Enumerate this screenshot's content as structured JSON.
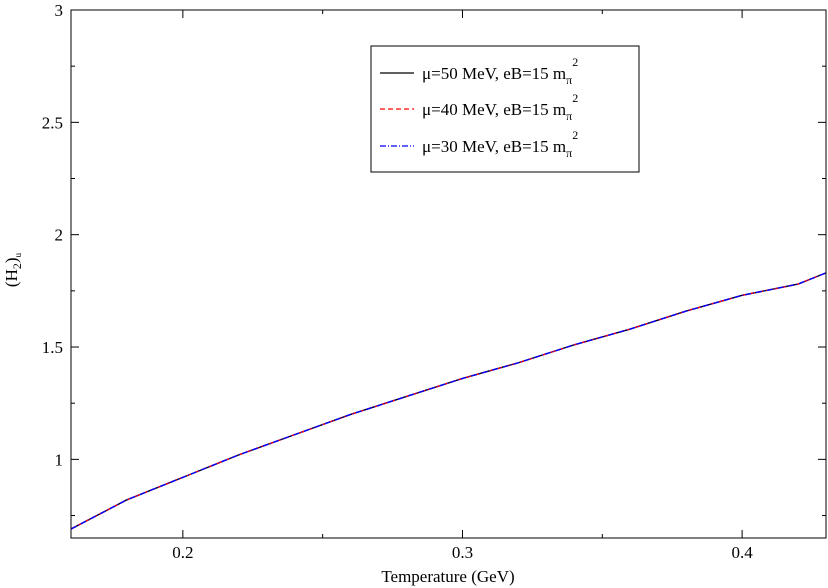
{
  "chart_data": {
    "type": "line",
    "title": "",
    "xlabel": "Temperature (GeV)",
    "ylabel": {
      "base": "(H",
      "sub1": "2",
      "close": ")",
      "sub2": "u"
    },
    "xlim": [
      0.16,
      0.43
    ],
    "ylim": [
      0.65,
      3.0
    ],
    "x_ticks": [
      0.2,
      0.3,
      0.4
    ],
    "x_tick_labels": [
      "0.2",
      "0.3",
      "0.4"
    ],
    "y_ticks": [
      1,
      1.5,
      2,
      2.5,
      3
    ],
    "y_tick_labels": [
      "1",
      "1.5",
      "2",
      "2.5",
      "3"
    ],
    "grid": false,
    "legend_position": "top-center",
    "series": [
      {
        "label_main": "μ=50 MeV, eB=15 m",
        "label_sub": "π",
        "label_sup": "2",
        "color": "#000000",
        "dash": "solid",
        "x": [
          0.16,
          0.18,
          0.2,
          0.22,
          0.24,
          0.26,
          0.28,
          0.3,
          0.32,
          0.34,
          0.36,
          0.38,
          0.4,
          0.42,
          0.43
        ],
        "y": [
          0.69,
          0.82,
          0.92,
          1.02,
          1.11,
          1.2,
          1.28,
          1.36,
          1.43,
          1.51,
          1.58,
          1.66,
          1.73,
          1.78,
          1.83
        ]
      },
      {
        "label_main": "μ=40 MeV, eB=15 m",
        "label_sub": "π",
        "label_sup": "2",
        "color": "#ff0000",
        "dash": "dashed",
        "x": [
          0.16,
          0.18,
          0.2,
          0.22,
          0.24,
          0.26,
          0.28,
          0.3,
          0.32,
          0.34,
          0.36,
          0.38,
          0.4,
          0.42,
          0.43
        ],
        "y": [
          0.69,
          0.82,
          0.92,
          1.02,
          1.11,
          1.2,
          1.28,
          1.36,
          1.43,
          1.51,
          1.58,
          1.66,
          1.73,
          1.78,
          1.83
        ]
      },
      {
        "label_main": "μ=30 MeV, eB=15 m",
        "label_sub": "π",
        "label_sup": "2",
        "color": "#0000ff",
        "dash": "dashdot",
        "x": [
          0.16,
          0.18,
          0.2,
          0.22,
          0.24,
          0.26,
          0.28,
          0.3,
          0.32,
          0.34,
          0.36,
          0.38,
          0.4,
          0.42,
          0.43
        ],
        "y": [
          0.69,
          0.82,
          0.92,
          1.02,
          1.11,
          1.2,
          1.28,
          1.36,
          1.43,
          1.51,
          1.58,
          1.66,
          1.73,
          1.78,
          1.83
        ]
      }
    ]
  }
}
